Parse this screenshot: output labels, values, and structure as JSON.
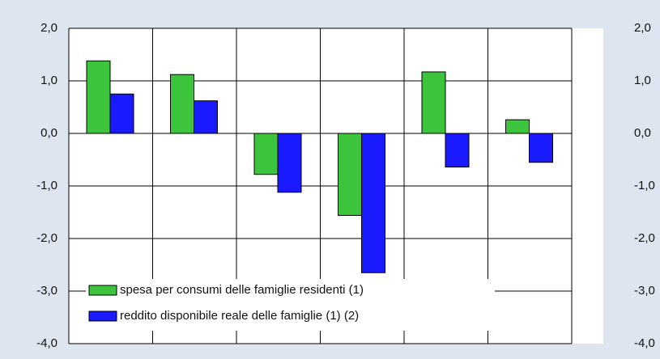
{
  "chart_data": {
    "type": "bar",
    "categories": [
      null,
      null,
      null,
      null,
      null,
      null
    ],
    "series": [
      {
        "name": "spesa per consumi delle famiglie residenti (1)",
        "color": "#3cc43c",
        "values": [
          1.38,
          1.12,
          -0.78,
          -1.56,
          1.17,
          0.26
        ]
      },
      {
        "name": "reddito disponibile reale delle famiglie (1) (2)",
        "color": "#1a1aff",
        "values": [
          0.75,
          0.62,
          -1.12,
          -2.65,
          -0.64,
          -0.55
        ]
      }
    ],
    "ylim": [
      -4,
      2
    ],
    "yticks": [
      {
        "value": -4,
        "label": "-4,0"
      },
      {
        "value": -3,
        "label": "-3,0"
      },
      {
        "value": -2,
        "label": "-2,0"
      },
      {
        "value": -1,
        "label": "-1,0"
      },
      {
        "value": 0,
        "label": "0,0"
      },
      {
        "value": 1,
        "label": "1,0"
      },
      {
        "value": 2,
        "label": "2,0"
      }
    ],
    "y2lim": [
      -4,
      2
    ],
    "y2ticks": [
      {
        "value": -4,
        "label": "-4,0"
      },
      {
        "value": -3,
        "label": "-3,0"
      },
      {
        "value": -2,
        "label": "-2,0"
      },
      {
        "value": -1,
        "label": "-1,0"
      },
      {
        "value": 0,
        "label": "0,0"
      },
      {
        "value": 1,
        "label": "1,0"
      },
      {
        "value": 2,
        "label": "2,0"
      }
    ],
    "grid": true,
    "legend": "lower-left"
  }
}
